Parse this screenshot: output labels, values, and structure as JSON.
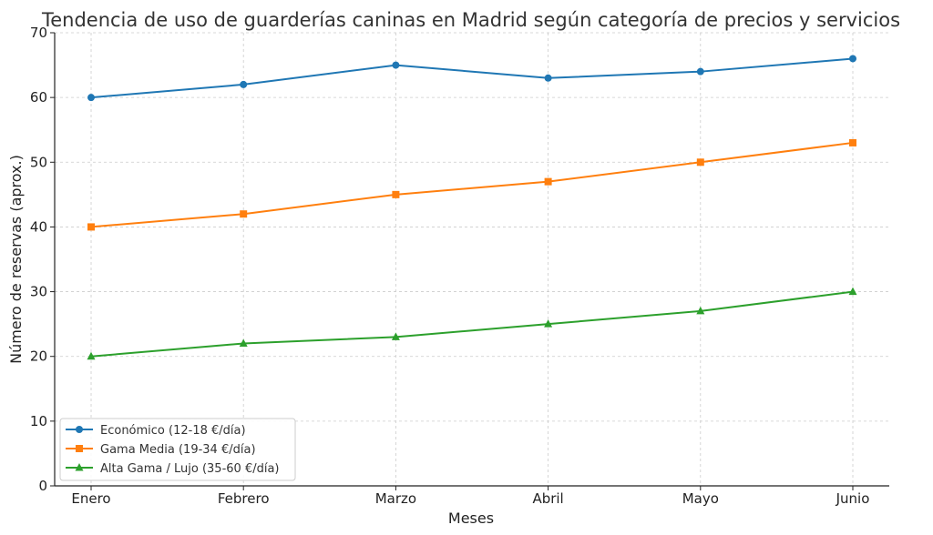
{
  "chart_data": {
    "type": "line",
    "title": "Tendencia de uso de guarderías caninas en Madrid según categoría de precios y servicios",
    "xlabel": "Meses",
    "ylabel": "Número de reservas (aprox.)",
    "categories": [
      "Enero",
      "Febrero",
      "Marzo",
      "Abril",
      "Mayo",
      "Junio"
    ],
    "ylim": [
      0,
      70
    ],
    "yticks": [
      0,
      10,
      20,
      30,
      40,
      50,
      60,
      70
    ],
    "grid": true,
    "legend_position": "bottom-left",
    "series": [
      {
        "name": "Económico (12-18 €/día)",
        "color": "#1f77b4",
        "marker": "circle",
        "values": [
          60,
          62,
          65,
          63,
          64,
          66
        ]
      },
      {
        "name": "Gama Media (19-34 €/día)",
        "color": "#ff7f0e",
        "marker": "square",
        "values": [
          40,
          42,
          45,
          47,
          50,
          53
        ]
      },
      {
        "name": "Alta Gama / Lujo (35-60 €/día)",
        "color": "#2ca02c",
        "marker": "triangle",
        "values": [
          20,
          22,
          23,
          25,
          27,
          30
        ]
      }
    ]
  }
}
